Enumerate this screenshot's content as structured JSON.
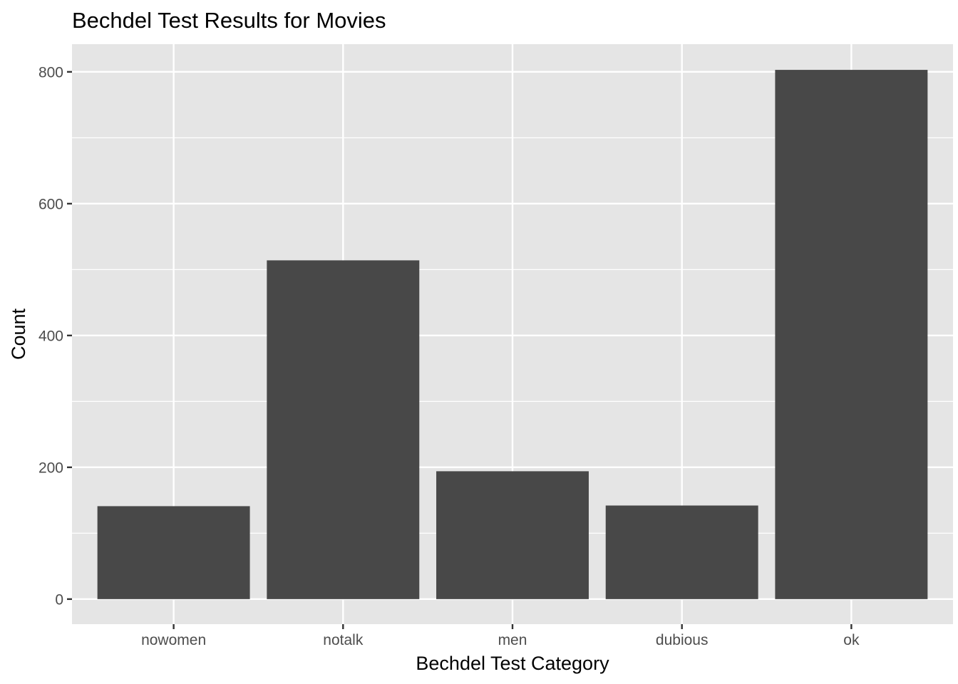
{
  "chart_data": {
    "type": "bar",
    "title": "Bechdel Test Results for Movies",
    "xlabel": "Bechdel Test Category",
    "ylabel": "Count",
    "categories": [
      "nowomen",
      "notalk",
      "men",
      "dubious",
      "ok"
    ],
    "values": [
      141,
      514,
      194,
      142,
      803
    ],
    "ylim": [
      -38,
      842
    ],
    "yticks": [
      0,
      200,
      400,
      600,
      800
    ],
    "grid": true,
    "legend": "none",
    "colors": {
      "panel_background": "#e5e5e5",
      "grid_line": "#ffffff",
      "bar_fill": "#484848",
      "tick_text": "#4d4d4d",
      "tick_mark": "#333333"
    }
  }
}
